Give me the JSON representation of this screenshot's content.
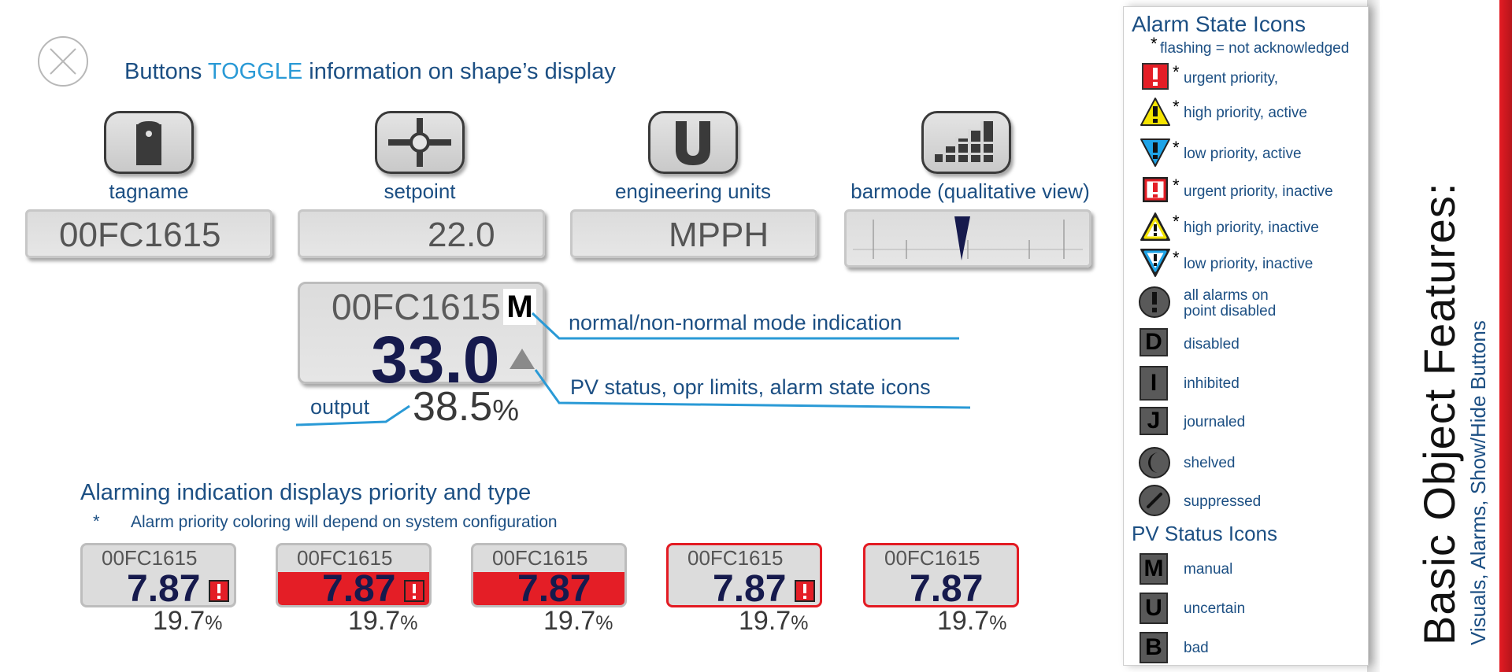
{
  "heading": {
    "prefix": "Buttons ",
    "highlight": "TOGGLE",
    "suffix": " information on shape’s display"
  },
  "buttons": [
    {
      "label": "tagname",
      "icon": "tag-icon"
    },
    {
      "label": "setpoint",
      "icon": "crosshair-icon"
    },
    {
      "label": "engineering units",
      "icon": "u-letter-icon"
    },
    {
      "label": "barmode (qualitative view)",
      "icon": "bar-chart-icon"
    }
  ],
  "displays": {
    "tagname": "00FC1615",
    "setpoint": "22.0",
    "units": "MPPH"
  },
  "faceplate": {
    "tag": "00FC1615",
    "mode": "M",
    "value": "33.0",
    "output_label": "output",
    "output_value": "38.5",
    "output_unit": "%"
  },
  "annotations": {
    "mode": "normal/non-normal mode indication",
    "status": "PV status, opr limits, alarm state icons"
  },
  "alarming": {
    "heading": "Alarming indication displays priority and type",
    "note_star": "*",
    "note": "Alarm priority coloring will depend on system configuration",
    "examples": [
      {
        "tag": "00FC1615",
        "value": "7.87",
        "pct": "19.7",
        "unit": "%",
        "style": "normal-with-icon"
      },
      {
        "tag": "00FC1615",
        "value": "7.87",
        "pct": "19.7",
        "unit": "%",
        "style": "red-band-with-icon"
      },
      {
        "tag": "00FC1615",
        "value": "7.87",
        "pct": "19.7",
        "unit": "%",
        "style": "red-band"
      },
      {
        "tag": "00FC1615",
        "value": "7.87",
        "pct": "19.7",
        "unit": "%",
        "style": "red-border-with-icon"
      },
      {
        "tag": "00FC1615",
        "value": "7.87",
        "pct": "19.7",
        "unit": "%",
        "style": "red-border"
      }
    ]
  },
  "legend": {
    "alarm_title": "Alarm State Icons",
    "flash_note": "flashing = not acknowledged",
    "star": "*",
    "alarm_items": [
      {
        "label": "urgent priority,",
        "icon": "urgent-alarm-icon"
      },
      {
        "label": "high priority, active",
        "icon": "high-alarm-icon"
      },
      {
        "label": "low priority, active",
        "icon": "low-alarm-icon"
      },
      {
        "label": "urgent priority, inactive",
        "icon": "urgent-inactive-icon"
      },
      {
        "label": "high priority, inactive",
        "icon": "high-inactive-icon"
      },
      {
        "label": "low priority, inactive",
        "icon": "low-inactive-icon"
      }
    ],
    "disabled_all_1": "all alarms on",
    "disabled_all_2": "point disabled",
    "state_items": [
      {
        "letter": "D",
        "label": "disabled"
      },
      {
        "letter": "I",
        "label": "inhibited"
      },
      {
        "letter": "J",
        "label": "journaled"
      }
    ],
    "shelved": "shelved",
    "suppressed": "suppressed",
    "pv_title": "PV Status Icons",
    "pv_items": [
      {
        "letter": "M",
        "label": "manual"
      },
      {
        "letter": "U",
        "label": "uncertain"
      },
      {
        "letter": "B",
        "label": "bad"
      }
    ]
  },
  "side": {
    "title": "Basic Object Features:",
    "subtitle": "Visuals, Alarms, Show/Hide Buttons"
  },
  "colors": {
    "accent": "#2a9ad6",
    "text": "#1c4f83",
    "alarm_red": "#e41e26",
    "value_navy": "#161a4d",
    "high_yellow": "#f5e400",
    "low_blue": "#1ea4e8"
  }
}
